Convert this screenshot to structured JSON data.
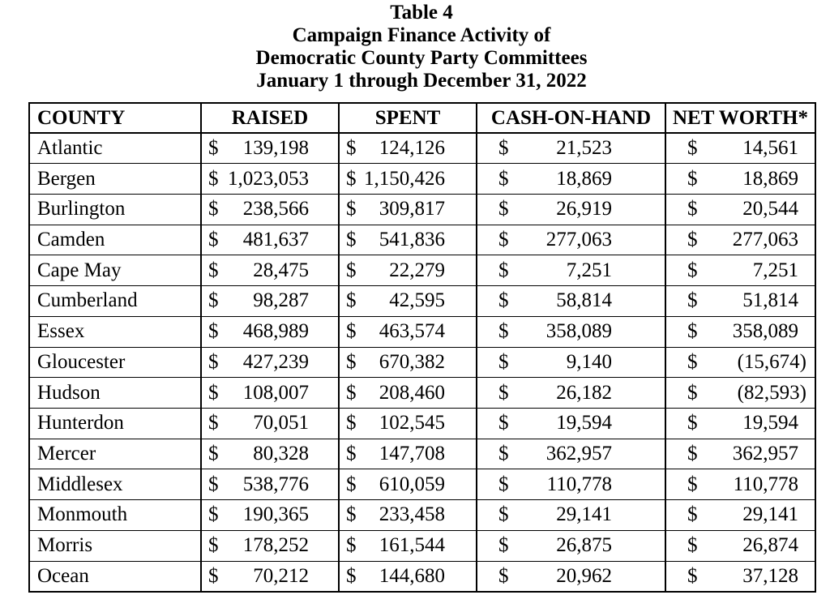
{
  "page": {
    "background_color": "#ffffff",
    "text_color": "#000000"
  },
  "title": {
    "lines": [
      "Table 4",
      "Campaign Finance Activity of",
      "Democratic County Party Committees",
      "January 1 through December 31, 2022"
    ]
  },
  "table": {
    "columns": [
      "COUNTY",
      "RAISED",
      "SPENT",
      "CASH-ON-HAND",
      "NET WORTH*"
    ],
    "currency_symbol": "$",
    "rows": [
      {
        "county": "Atlantic",
        "raised": "139,198",
        "spent": "124,126",
        "cash_on_hand": "21,523",
        "net_worth": "14,561"
      },
      {
        "county": "Bergen",
        "raised": "1,023,053",
        "spent": "1,150,426",
        "cash_on_hand": "18,869",
        "net_worth": "18,869"
      },
      {
        "county": "Burlington",
        "raised": "238,566",
        "spent": "309,817",
        "cash_on_hand": "26,919",
        "net_worth": "20,544"
      },
      {
        "county": "Camden",
        "raised": "481,637",
        "spent": "541,836",
        "cash_on_hand": "277,063",
        "net_worth": "277,063"
      },
      {
        "county": "Cape May",
        "raised": "28,475",
        "spent": "22,279",
        "cash_on_hand": "7,251",
        "net_worth": "7,251"
      },
      {
        "county": "Cumberland",
        "raised": "98,287",
        "spent": "42,595",
        "cash_on_hand": "58,814",
        "net_worth": "51,814"
      },
      {
        "county": "Essex",
        "raised": "468,989",
        "spent": "463,574",
        "cash_on_hand": "358,089",
        "net_worth": "358,089"
      },
      {
        "county": "Gloucester",
        "raised": "427,239",
        "spent": "670,382",
        "cash_on_hand": "9,140",
        "net_worth": "(15,674)"
      },
      {
        "county": "Hudson",
        "raised": "108,007",
        "spent": "208,460",
        "cash_on_hand": "26,182",
        "net_worth": "(82,593)"
      },
      {
        "county": "Hunterdon",
        "raised": "70,051",
        "spent": "102,545",
        "cash_on_hand": "19,594",
        "net_worth": "19,594"
      },
      {
        "county": "Mercer",
        "raised": "80,328",
        "spent": "147,708",
        "cash_on_hand": "362,957",
        "net_worth": "362,957"
      },
      {
        "county": "Middlesex",
        "raised": "538,776",
        "spent": "610,059",
        "cash_on_hand": "110,778",
        "net_worth": "110,778"
      },
      {
        "county": "Monmouth",
        "raised": "190,365",
        "spent": "233,458",
        "cash_on_hand": "29,141",
        "net_worth": "29,141"
      },
      {
        "county": "Morris",
        "raised": "178,252",
        "spent": "161,544",
        "cash_on_hand": "26,875",
        "net_worth": "26,874"
      },
      {
        "county": "Ocean",
        "raised": "70,212",
        "spent": "144,680",
        "cash_on_hand": "20,962",
        "net_worth": "37,128"
      }
    ]
  }
}
